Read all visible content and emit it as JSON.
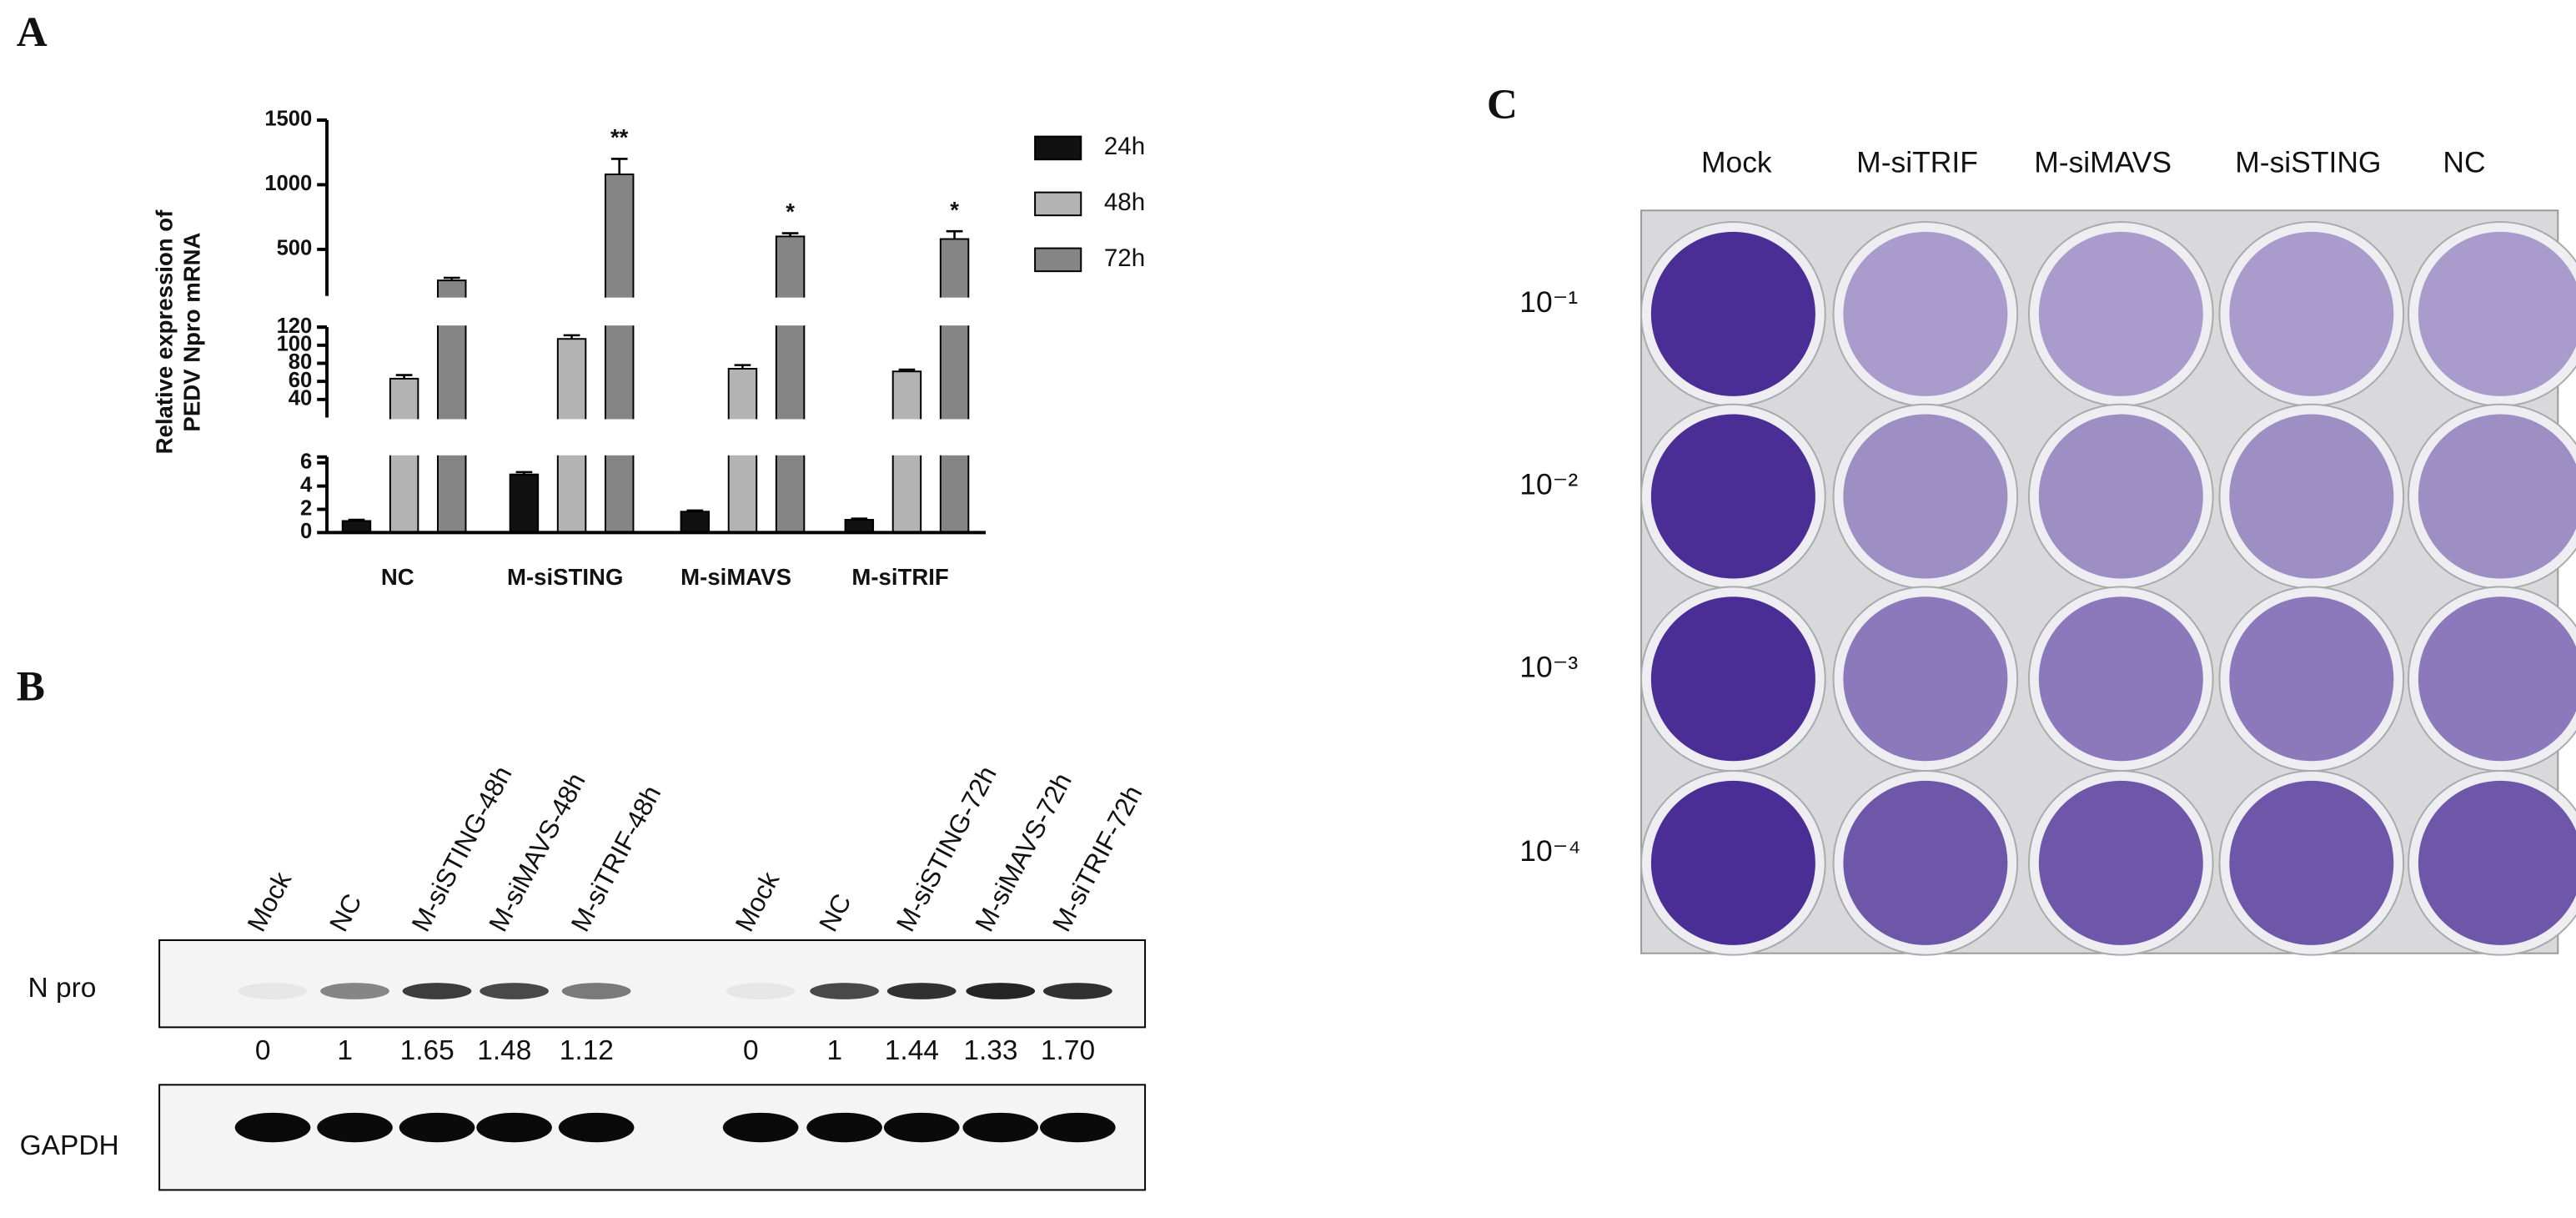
{
  "panel_labels": [
    "A",
    "B",
    "C"
  ],
  "chart_data": {
    "type": "bar",
    "y_label": [
      "Relative expression of",
      "PEDV Npro mRNA"
    ],
    "categories": [
      "NC",
      "M-siSTING",
      "M-siMAVS",
      "M-siTRIF"
    ],
    "series": [
      {
        "name": "24h",
        "color": "#111111",
        "values": [
          1,
          5,
          1.8,
          1.1
        ],
        "errors": [
          0.1,
          0.2,
          0.1,
          0.1
        ]
      },
      {
        "name": "48h",
        "color": "#b3b3b3",
        "values": [
          63,
          107,
          74,
          71
        ],
        "errors": [
          4,
          4,
          4,
          2
        ]
      },
      {
        "name": "72h",
        "color": "#858585",
        "values": [
          260,
          1080,
          600,
          580
        ],
        "errors": [
          20,
          120,
          25,
          60
        ]
      }
    ],
    "y_segments": [
      {
        "ylim": [
          0,
          6.5
        ],
        "yticks": [
          0,
          2,
          4,
          6
        ]
      },
      {
        "ylim": [
          20,
          120
        ],
        "yticks": [
          40,
          60,
          80,
          100,
          120
        ]
      },
      {
        "ylim": [
          140,
          1500
        ],
        "yticks": [
          500,
          1000,
          1500
        ]
      }
    ],
    "significance": [
      null,
      "**",
      "*",
      "*"
    ],
    "legend": "right"
  },
  "blot": {
    "lanes": [
      "Mock",
      "NC",
      "M-siSTING-48h",
      "M-siMAVS-48h",
      "M-siTRIF-48h",
      "Mock",
      "NC",
      "M-siSTING-72h",
      "M-siMAVS-72h",
      "M-siTRIF-72h"
    ],
    "rows": [
      {
        "label": "N pro",
        "quantities": [
          "0",
          "1",
          "1.65",
          "1.48",
          "1.12",
          "0",
          "1",
          "1.44",
          "1.33",
          "1.70"
        ]
      },
      {
        "label": "GAPDH"
      }
    ]
  },
  "plate": {
    "columns": [
      "Mock",
      "M-siTRIF",
      "M-siMAVS",
      "M-siSTING",
      "NC"
    ],
    "rows": [
      "10⁻¹",
      "10⁻²",
      "10⁻³",
      "10⁻⁴"
    ]
  }
}
